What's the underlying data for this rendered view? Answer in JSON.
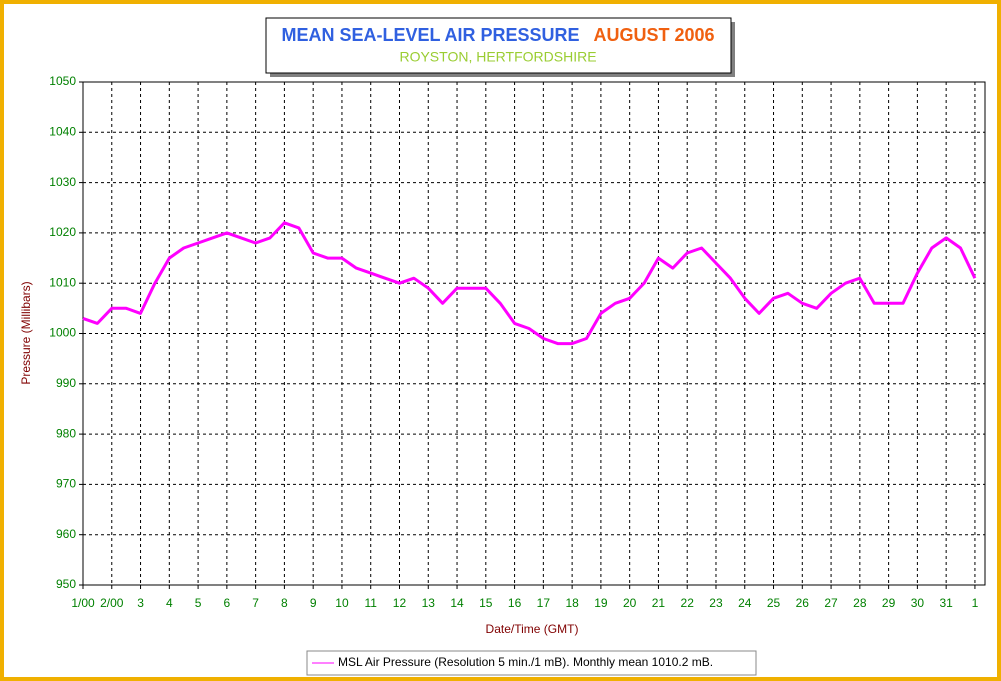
{
  "chart_data": {
    "type": "line",
    "title": "MEAN SEA-LEVEL AIR PRESSURE",
    "title_period": "AUGUST 2006",
    "subtitle": "ROYSTON, HERTFORDSHIRE",
    "xlabel": "Date/Time (GMT)",
    "ylabel": "Pressure (Millibars)",
    "x": [
      0,
      0.5,
      1,
      1.5,
      2,
      2.5,
      3,
      3.5,
      4,
      4.5,
      5,
      5.5,
      6,
      6.5,
      7,
      7.5,
      8,
      8.5,
      9,
      9.5,
      10,
      10.5,
      11,
      11.5,
      12,
      12.5,
      13,
      13.5,
      14,
      14.5,
      15,
      15.5,
      16,
      16.5,
      17,
      17.5,
      18,
      18.5,
      19,
      19.5,
      20,
      20.5,
      21,
      21.5,
      22,
      22.5,
      23,
      23.5,
      24,
      24.5,
      25,
      25.5,
      26,
      26.5,
      27,
      27.5,
      28,
      28.5,
      29,
      29.5,
      30,
      30.5,
      31
    ],
    "series": [
      {
        "name": "MSL Air Pressure (Resolution 5 min./1 mB). Monthly mean 1010.2 mB.",
        "color": "#ff00ff",
        "values": [
          1003,
          1002,
          1005,
          1005,
          1004,
          1010,
          1015,
          1017,
          1018,
          1019,
          1020,
          1019,
          1018,
          1019,
          1022,
          1021,
          1016,
          1015,
          1015,
          1013,
          1012,
          1011,
          1010,
          1011,
          1009,
          1006,
          1009,
          1009,
          1009,
          1006,
          1002,
          1001,
          999,
          998,
          998,
          999,
          1004,
          1006,
          1007,
          1010,
          1015,
          1013,
          1016,
          1017,
          1014,
          1011,
          1007,
          1004,
          1007,
          1008,
          1006,
          1005,
          1008,
          1010,
          1011,
          1006,
          1006,
          1006,
          1012,
          1017,
          1019,
          1017,
          1011
        ]
      }
    ],
    "xlim": [
      0,
      31.35
    ],
    "ylim": [
      950,
      1050
    ],
    "xticks": [
      {
        "value": 0,
        "label": "1/00"
      },
      {
        "value": 1,
        "label": "2/00"
      },
      {
        "value": 2,
        "label": "3"
      },
      {
        "value": 3,
        "label": "4"
      },
      {
        "value": 4,
        "label": "5"
      },
      {
        "value": 5,
        "label": "6"
      },
      {
        "value": 6,
        "label": "7"
      },
      {
        "value": 7,
        "label": "8"
      },
      {
        "value": 8,
        "label": "9"
      },
      {
        "value": 9,
        "label": "10"
      },
      {
        "value": 10,
        "label": "11"
      },
      {
        "value": 11,
        "label": "12"
      },
      {
        "value": 12,
        "label": "13"
      },
      {
        "value": 13,
        "label": "14"
      },
      {
        "value": 14,
        "label": "15"
      },
      {
        "value": 15,
        "label": "16"
      },
      {
        "value": 16,
        "label": "17"
      },
      {
        "value": 17,
        "label": "18"
      },
      {
        "value": 18,
        "label": "19"
      },
      {
        "value": 19,
        "label": "20"
      },
      {
        "value": 20,
        "label": "21"
      },
      {
        "value": 21,
        "label": "22"
      },
      {
        "value": 22,
        "label": "23"
      },
      {
        "value": 23,
        "label": "24"
      },
      {
        "value": 24,
        "label": "25"
      },
      {
        "value": 25,
        "label": "26"
      },
      {
        "value": 26,
        "label": "27"
      },
      {
        "value": 27,
        "label": "28"
      },
      {
        "value": 28,
        "label": "29"
      },
      {
        "value": 29,
        "label": "30"
      },
      {
        "value": 30,
        "label": "31"
      },
      {
        "value": 31,
        "label": "1"
      }
    ],
    "yticks": [
      950,
      960,
      970,
      980,
      990,
      1000,
      1010,
      1020,
      1030,
      1040,
      1050
    ],
    "grid": true
  }
}
